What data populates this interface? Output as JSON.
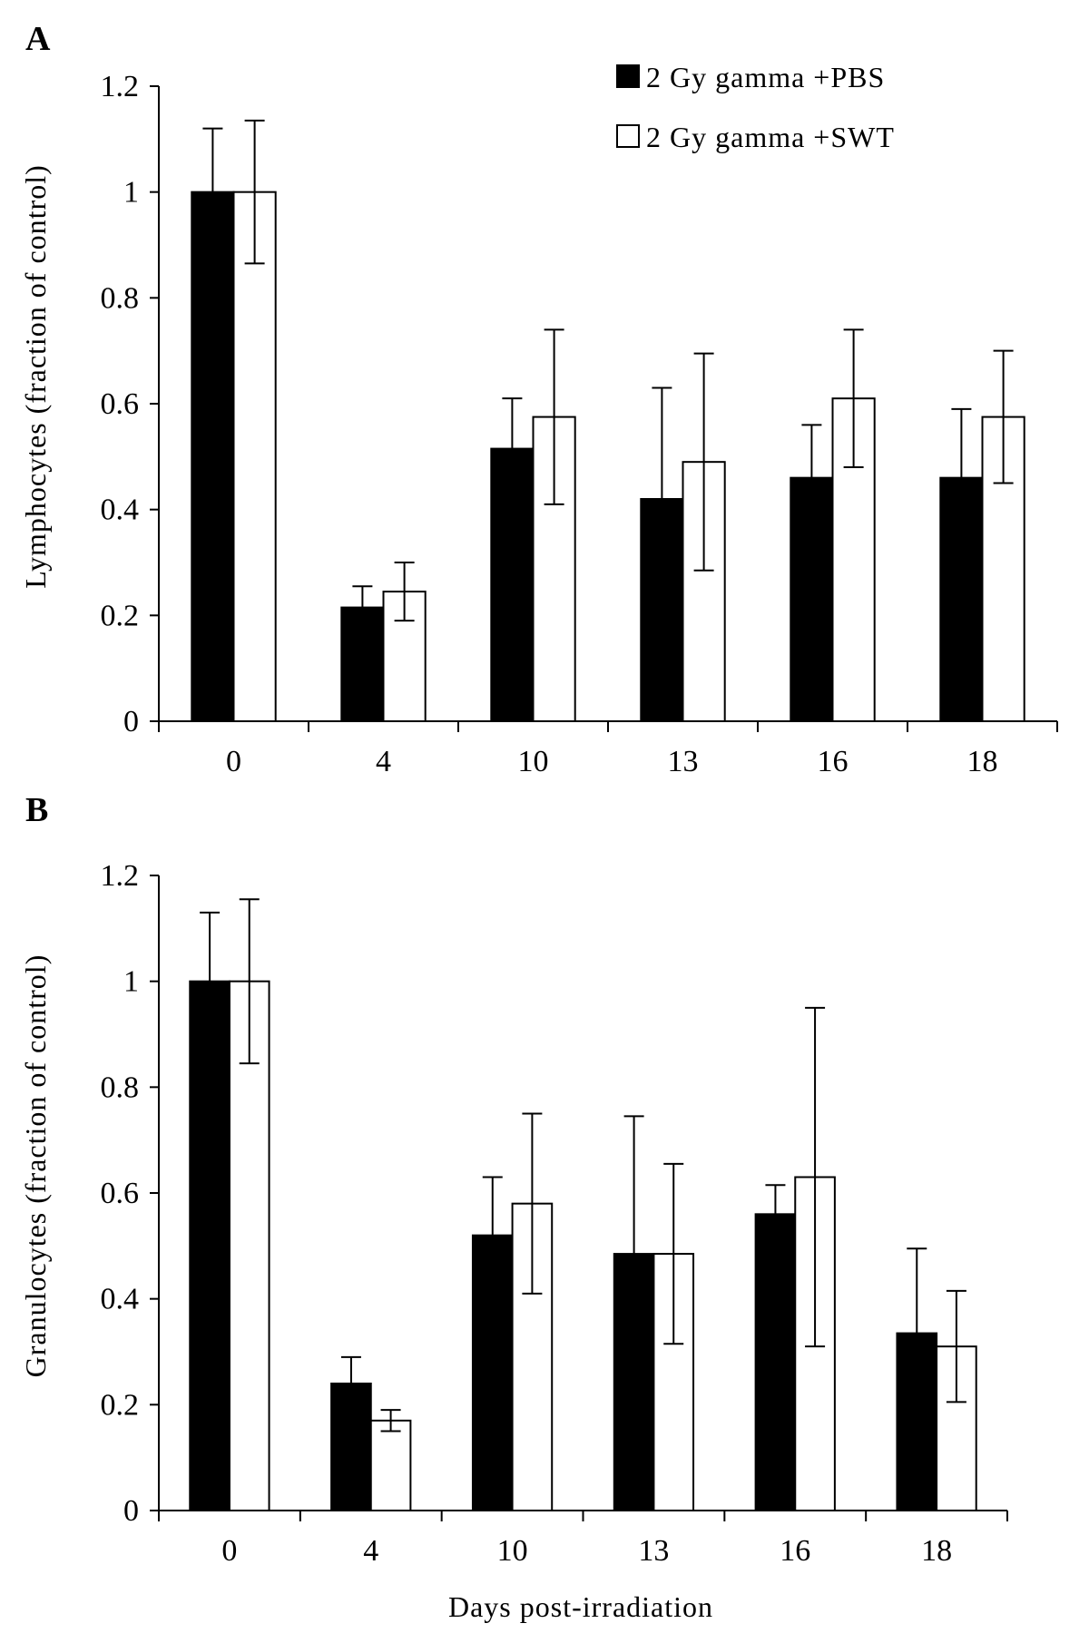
{
  "chart_data": [
    {
      "panel_label": "A",
      "type": "bar",
      "categories": [
        "0",
        "4",
        "10",
        "13",
        "16",
        "18"
      ],
      "ylabel": "Lymphocytes  (fraction of control)",
      "xlabel": "",
      "ylim": [
        0,
        1.2
      ],
      "yticks": [
        "0",
        "0.2",
        "0.4",
        "0.6",
        "0.8",
        "1",
        "1.2"
      ],
      "legend_position": "top-right",
      "series": [
        {
          "name": "2 Gy gamma +PBS",
          "color": "#000000",
          "values": [
            1.0,
            0.215,
            0.515,
            0.42,
            0.46,
            0.46
          ],
          "errors": [
            0.12,
            0.04,
            0.095,
            0.21,
            0.1,
            0.13
          ]
        },
        {
          "name": "2 Gy gamma +SWT",
          "color": "#ffffff",
          "values": [
            1.0,
            0.245,
            0.575,
            0.49,
            0.61,
            0.575
          ],
          "errors": [
            0.135,
            0.055,
            0.165,
            0.205,
            0.13,
            0.125
          ]
        }
      ]
    },
    {
      "panel_label": "B",
      "type": "bar",
      "categories": [
        "0",
        "4",
        "10",
        "13",
        "16",
        "18"
      ],
      "ylabel": "Granulocytes  (fraction of control)",
      "xlabel": "Days  post-irradiation",
      "ylim": [
        0,
        1.2
      ],
      "yticks": [
        "0",
        "0.2",
        "0.4",
        "0.6",
        "0.8",
        "1",
        "1.2"
      ],
      "series": [
        {
          "name": "2 Gy gamma +PBS",
          "color": "#000000",
          "values": [
            1.0,
            0.24,
            0.52,
            0.485,
            0.56,
            0.335
          ],
          "errors": [
            0.13,
            0.05,
            0.11,
            0.26,
            0.055,
            0.16
          ]
        },
        {
          "name": "2 Gy gamma +SWT",
          "color": "#ffffff",
          "values": [
            1.0,
            0.17,
            0.58,
            0.485,
            0.63,
            0.31
          ],
          "errors": [
            0.155,
            0.02,
            0.17,
            0.17,
            0.32,
            0.105
          ]
        }
      ]
    }
  ]
}
